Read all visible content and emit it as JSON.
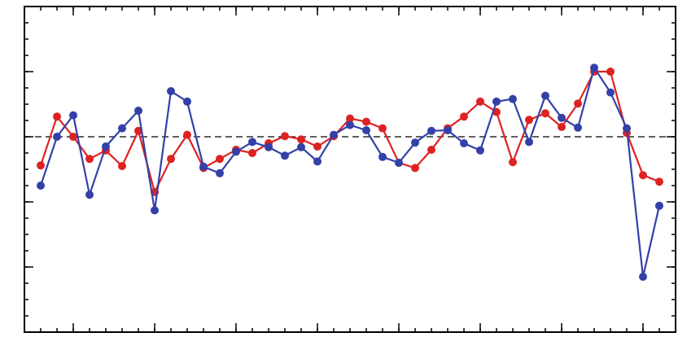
{
  "chart_data": {
    "type": "line",
    "x": [
      0,
      1,
      2,
      3,
      4,
      5,
      6,
      7,
      8,
      9,
      10,
      11,
      12,
      13,
      14,
      15,
      16,
      17,
      18,
      19,
      20,
      21,
      22,
      23,
      24,
      25,
      26,
      27,
      28,
      29,
      30,
      31,
      32,
      33,
      34,
      35,
      36,
      37,
      38
    ],
    "series": [
      {
        "color": "#dd2222",
        "values": [
          -0.44,
          0.31,
          0,
          -0.34,
          -0.21,
          -0.45,
          0.09,
          -0.85,
          -0.34,
          0.03,
          -0.48,
          -0.34,
          -0.2,
          -0.25,
          -0.1,
          0.01,
          -0.04,
          -0.15,
          0.01,
          0.28,
          0.23,
          0.13,
          -0.4,
          -0.48,
          -0.2,
          0.13,
          0.31,
          0.54,
          0.38,
          -0.39,
          0.26,
          0.36,
          0.15,
          0.51,
          1.0,
          1.0,
          0.06,
          -0.59,
          -0.69
        ]
      },
      {
        "color": "#3340a8",
        "values": [
          -0.75,
          0,
          0.33,
          -0.89,
          -0.15,
          0.13,
          0.4,
          -1.13,
          0.7,
          0.54,
          -0.46,
          -0.56,
          -0.23,
          -0.08,
          -0.16,
          -0.29,
          -0.16,
          -0.38,
          0.03,
          0.18,
          0.1,
          -0.31,
          -0.4,
          -0.09,
          0.09,
          0.1,
          -0.1,
          -0.21,
          0.54,
          0.58,
          -0.08,
          0.63,
          0.29,
          0.14,
          1.06,
          0.68,
          0.13,
          -2.15,
          -1.06
        ]
      }
    ],
    "xlim": [
      -1,
      39
    ],
    "xticks": [
      2,
      7,
      12,
      17,
      22,
      27,
      32,
      37
    ],
    "ylim": [
      -3,
      2
    ],
    "yticks": [
      -2,
      -1,
      0,
      1
    ],
    "reference_line": 0
  }
}
